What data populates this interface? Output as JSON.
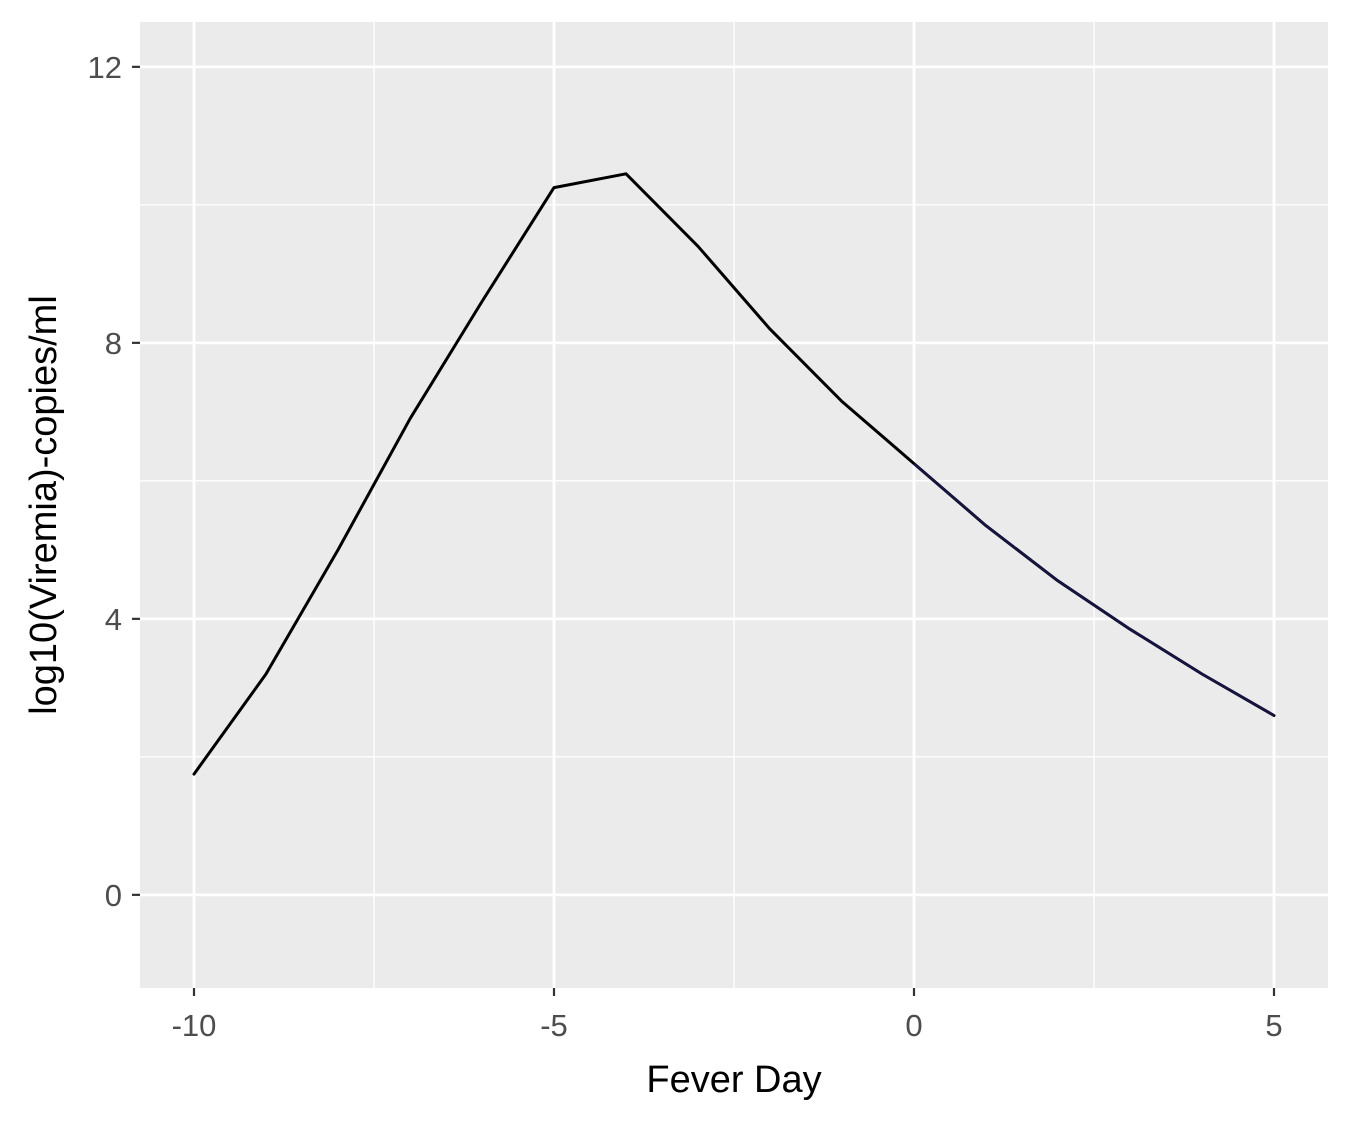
{
  "chart_data": {
    "type": "line",
    "title": "",
    "xlabel": "Fever Day",
    "ylabel": "log10(Viremia)-copies/ml",
    "xlim": [
      -10.75,
      5.75
    ],
    "ylim": [
      -1.35,
      12.65
    ],
    "x_ticks": [
      -10,
      -5,
      0,
      5
    ],
    "y_ticks": [
      0,
      4,
      8,
      12
    ],
    "x_tick_labels": [
      "-10",
      "-5",
      "0",
      "5"
    ],
    "y_tick_labels": [
      "0",
      "4",
      "8",
      "12"
    ],
    "grid": true,
    "legend": "none",
    "colors": {
      "panel_background": "#ebebeb",
      "grid": "#ffffff",
      "line": "#000000",
      "line_overlay": "#1a1a5e"
    },
    "series": [
      {
        "x": [
          -10,
          -9,
          -8,
          -7,
          -6,
          -5,
          -4,
          -3,
          -2,
          -1,
          0,
          1,
          2,
          3,
          4,
          5
        ],
        "values": [
          1.75,
          3.2,
          5.0,
          6.9,
          8.6,
          10.25,
          10.45,
          9.4,
          8.2,
          7.15,
          6.25,
          5.35,
          4.55,
          3.85,
          3.2,
          2.6
        ]
      }
    ]
  }
}
